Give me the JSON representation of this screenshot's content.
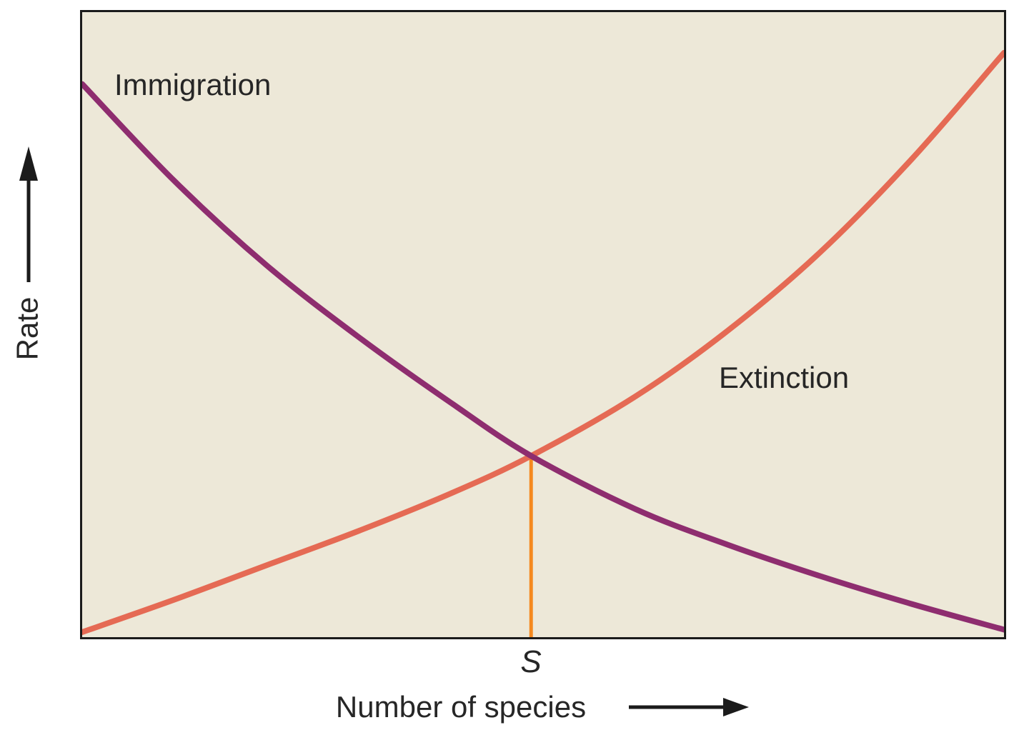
{
  "figure": {
    "background": "#ffffff",
    "plot_bg": "#EDE8D8",
    "border_color": "#1b1b1b",
    "text_color": "#262626"
  },
  "labels": {
    "immigration": "Immigration",
    "extinction": "Extinction",
    "y_axis": "Rate",
    "x_axis": "Number of species",
    "equilibrium": "S"
  },
  "chart_data": {
    "type": "line",
    "title": "",
    "xlabel": "Number of species",
    "ylabel": "Rate",
    "x_range": [
      0,
      100
    ],
    "y_range": [
      0,
      100
    ],
    "grid": false,
    "ticks": "none",
    "legend_position": "inline-curve-labels",
    "series": [
      {
        "name": "Immigration",
        "color": "#8E2D6F",
        "shape": "concave-up decreasing",
        "points": [
          [
            0,
            88.5
          ],
          [
            10,
            73
          ],
          [
            20,
            59.5
          ],
          [
            30,
            48
          ],
          [
            40,
            37.5
          ],
          [
            48.7,
            29
          ],
          [
            60,
            20.5
          ],
          [
            70,
            14.8
          ],
          [
            80,
            9.8
          ],
          [
            90,
            5.3
          ],
          [
            100,
            1.2
          ]
        ]
      },
      {
        "name": "Extinction",
        "color": "#E56A54",
        "shape": "concave-up increasing",
        "points": [
          [
            0,
            0.8
          ],
          [
            10,
            6
          ],
          [
            20,
            11.5
          ],
          [
            30,
            17
          ],
          [
            40,
            23
          ],
          [
            48.7,
            29
          ],
          [
            60,
            38.5
          ],
          [
            70,
            49
          ],
          [
            80,
            61.5
          ],
          [
            90,
            76.5
          ],
          [
            100,
            93.5
          ]
        ]
      }
    ],
    "equilibrium": {
      "label": "S",
      "x": 48.7,
      "y": 29,
      "line_color": "#F5891F"
    }
  }
}
